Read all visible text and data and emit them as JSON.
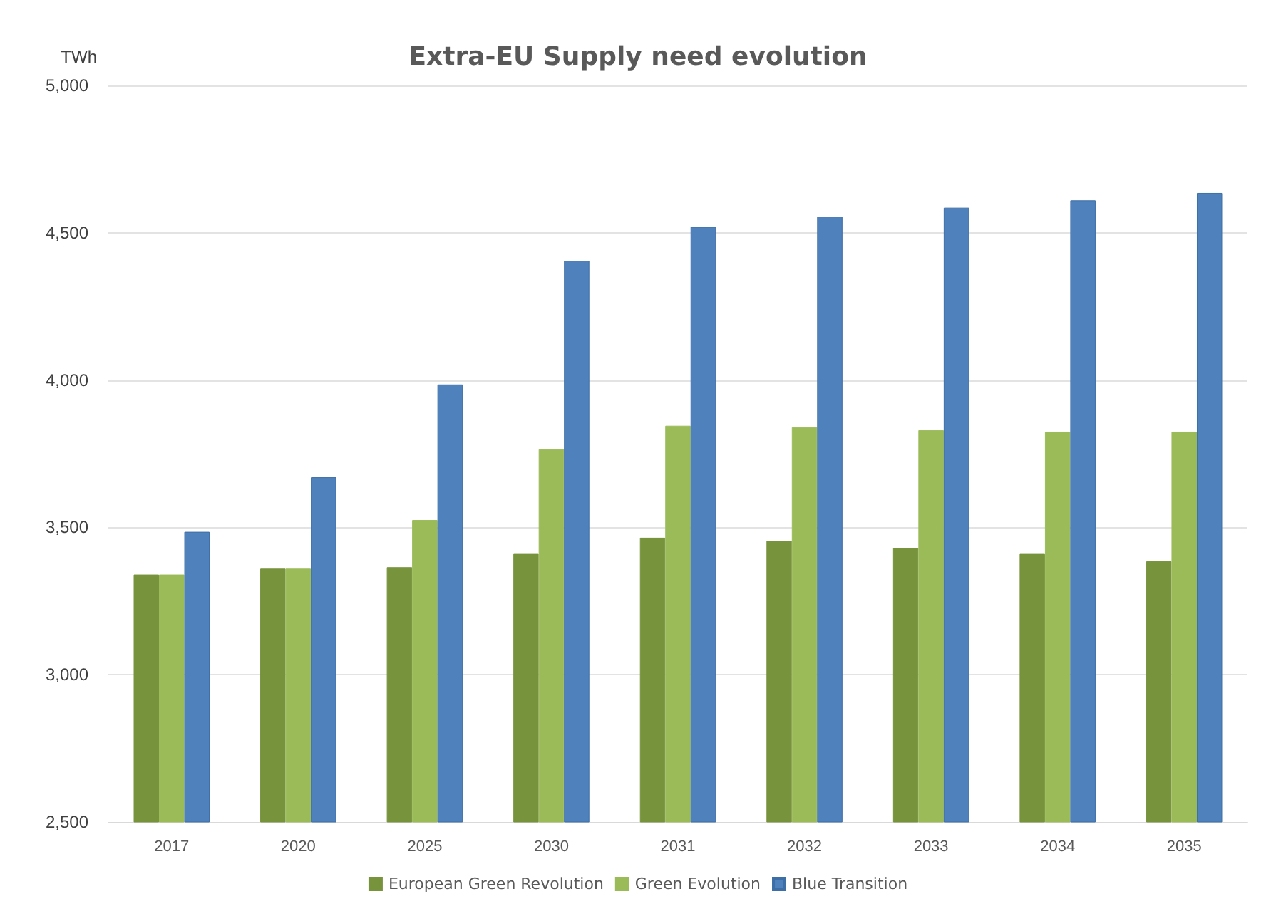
{
  "chart_data": {
    "type": "bar",
    "title": "Extra-EU Supply need evolution",
    "ylabel": "TWh",
    "categories": [
      "2017",
      "2020",
      "2025",
      "2030",
      "2031",
      "2032",
      "2033",
      "2034",
      "2035"
    ],
    "series": [
      {
        "name": "European Green Revolution",
        "color": "#77933c",
        "values": [
          3340,
          3360,
          3365,
          3410,
          3465,
          3455,
          3430,
          3410,
          3385
        ]
      },
      {
        "name": "Green Evolution",
        "color": "#9bbb59",
        "values": [
          3340,
          3360,
          3525,
          3765,
          3845,
          3840,
          3830,
          3825,
          3825
        ]
      },
      {
        "name": "Blue Transition",
        "color": "#4f81bd",
        "values": [
          3485,
          3670,
          3985,
          4405,
          4520,
          4555,
          4585,
          4610,
          4635
        ]
      }
    ],
    "ylim": [
      2500,
      5000
    ],
    "yticks": [
      {
        "value": 2500,
        "label": "2,500"
      },
      {
        "value": 3000,
        "label": "3,000"
      },
      {
        "value": 3500,
        "label": "3,500"
      },
      {
        "value": 4000,
        "label": "4,000"
      },
      {
        "value": 4500,
        "label": "4,500"
      },
      {
        "value": 5000,
        "label": "5,000"
      }
    ],
    "grid": "y",
    "legend": "bottom"
  }
}
